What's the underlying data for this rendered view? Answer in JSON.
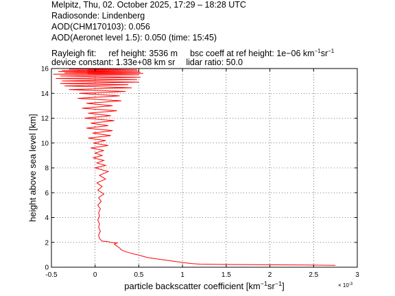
{
  "header": {
    "line1": "Melpitz, Thu, 02. October 2025, 17:29 – 18:28 UTC",
    "line2": "Radiosonde: Lindenberg",
    "line3": "AOD(CHM170103): 0.056",
    "line4": "AOD(Aeronet level 1.5): 0.050   (time: 15:45)",
    "rayleigh_label": "Rayleigh fit:",
    "ref_height": "ref height: 3536 m",
    "bsc_coeff_prefix": "bsc coeff at ref height: 1e−06 km",
    "bsc_coeff_unit_mid": "sr",
    "device_constant": "device constant: 1.33e+08 km sr",
    "lidar_ratio": "lidar ratio: 50.0"
  },
  "chart_data": {
    "type": "line",
    "xlabel_prefix": "particle backscatter coefficient [km",
    "xlabel_mid": "sr",
    "xlabel_suffix": "]",
    "ylabel": "height above sea level [km]",
    "x_multiplier": "× 10",
    "x_multiplier_exp": "-3",
    "xlim": [
      -0.5,
      3.0
    ],
    "ylim": [
      0,
      16
    ],
    "x_ticks": [
      -0.5,
      0,
      0.5,
      1,
      1.5,
      2,
      2.5,
      3
    ],
    "y_ticks": [
      0,
      2,
      4,
      6,
      8,
      10,
      12,
      14,
      16
    ],
    "grid": true,
    "x_units_scale": 0.001,
    "line_color": "#ff0000",
    "series": [
      {
        "x": [
          2.75,
          2.4,
          1.9,
          1.5,
          1.2,
          1.1,
          1.0,
          0.9,
          0.8,
          0.7,
          0.6,
          0.55,
          0.5,
          0.45,
          0.4,
          0.35,
          0.3,
          0.28,
          0.25,
          0.22,
          0.25,
          0.18,
          0.15,
          0.08,
          0.05,
          0.04,
          0.06,
          0.04,
          0.05,
          0.03,
          0.05,
          0.04,
          0.06,
          0.03,
          0.07,
          0.04,
          0.1,
          0.03,
          0.08,
          0.02,
          0.12,
          0.05,
          0.15,
          0.0,
          0.12,
          0.02,
          0.1,
          -0.02,
          0.08,
          0.0,
          0.1,
          -0.05,
          0.15,
          -0.02,
          0.12,
          -0.08,
          0.18,
          -0.03,
          0.2,
          -0.1,
          0.15,
          -0.05,
          0.22,
          -0.12,
          0.18,
          -0.08,
          0.25,
          -0.15,
          0.2,
          -0.1,
          0.3,
          -0.2,
          0.28,
          -0.18,
          0.35,
          -0.3,
          0.42,
          -0.35,
          0.38,
          -0.4,
          0.5,
          -0.38,
          0.48,
          -0.45,
          0.52,
          -0.4,
          0.5,
          -0.48,
          0.55,
          -0.35,
          0.52,
          -0.42,
          0.5,
          -0.38,
          0.48,
          -0.3,
          0.45
        ],
        "y": [
          0.15,
          0.18,
          0.2,
          0.22,
          0.25,
          0.3,
          0.38,
          0.48,
          0.58,
          0.68,
          0.78,
          0.88,
          0.98,
          1.05,
          1.15,
          1.25,
          1.4,
          1.55,
          1.7,
          1.85,
          1.95,
          2.0,
          2.05,
          2.1,
          2.3,
          2.6,
          2.9,
          3.2,
          3.5,
          3.8,
          4.1,
          4.4,
          4.7,
          5.0,
          5.3,
          5.6,
          5.9,
          6.2,
          6.5,
          6.8,
          7.1,
          7.4,
          7.7,
          8.0,
          8.2,
          8.4,
          8.6,
          8.8,
          9.0,
          9.2,
          9.4,
          9.6,
          9.8,
          10.0,
          10.2,
          10.4,
          10.6,
          10.8,
          11.0,
          11.2,
          11.4,
          11.6,
          11.8,
          12.0,
          12.2,
          12.4,
          12.6,
          12.8,
          13.0,
          13.2,
          13.4,
          13.6,
          13.8,
          14.0,
          14.15,
          14.3,
          14.45,
          14.6,
          14.7,
          14.8,
          14.9,
          15.0,
          15.1,
          15.2,
          15.3,
          15.4,
          15.5,
          15.55,
          15.6,
          15.65,
          15.7,
          15.75,
          15.8,
          15.85,
          15.9,
          15.95,
          16.0
        ]
      }
    ]
  }
}
